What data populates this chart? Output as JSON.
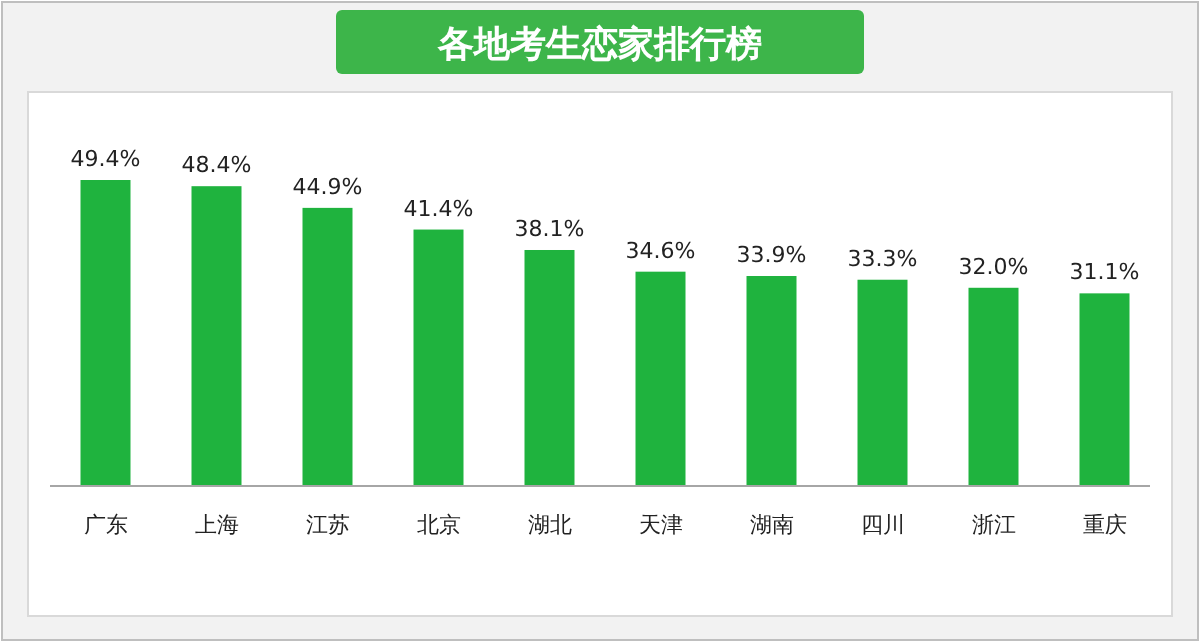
{
  "chart_data": {
    "type": "bar",
    "title": "各地考生恋家排行榜",
    "categories": [
      "广东",
      "上海",
      "江苏",
      "北京",
      "湖北",
      "天津",
      "湖南",
      "四川",
      "浙江",
      "重庆"
    ],
    "values": [
      49.4,
      48.4,
      44.9,
      41.4,
      38.1,
      34.6,
      33.9,
      33.3,
      32.0,
      31.1
    ],
    "value_labels": [
      "49.4%",
      "48.4%",
      "44.9%",
      "41.4%",
      "38.1%",
      "34.6%",
      "33.9%",
      "33.3%",
      "32.0%",
      "31.1%"
    ],
    "color": "#1fb33e"
  }
}
